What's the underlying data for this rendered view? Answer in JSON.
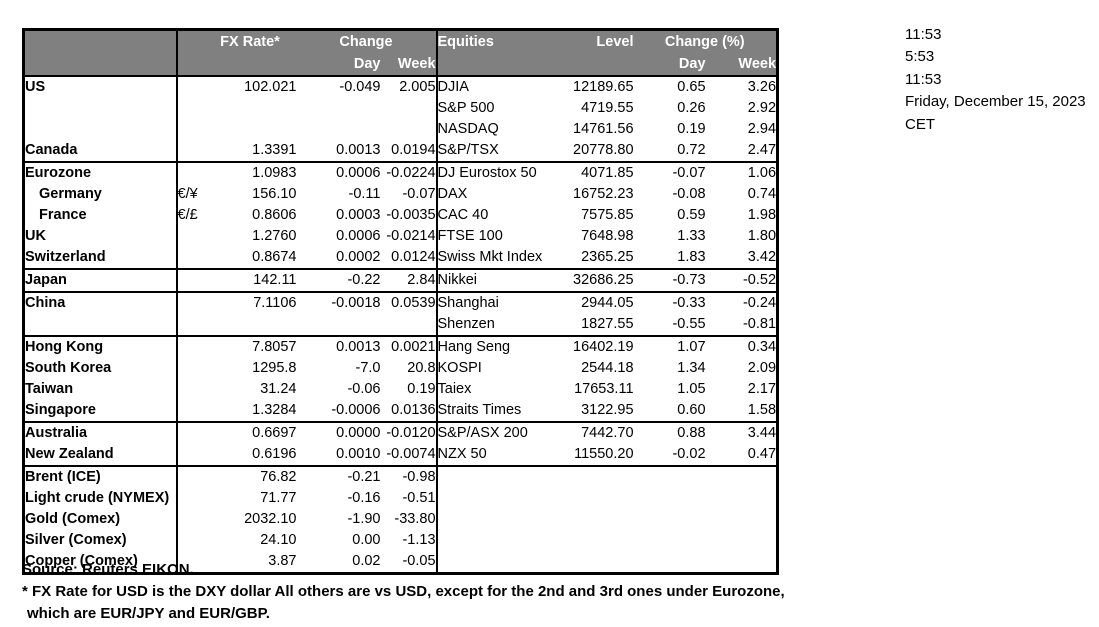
{
  "header": {
    "fx_rate": "FX Rate*",
    "change": "Change",
    "day": "Day",
    "week": "Week",
    "equities": "Equities",
    "level": "Level",
    "change_pct": "Change (%)"
  },
  "sections": [
    {
      "rows": [
        {
          "name": "US",
          "pair": "",
          "fx": "102.021",
          "day": "-0.049",
          "week": "2.005",
          "eq": "DJIA",
          "level": "12189.65",
          "eq_day": "0.65",
          "eq_week": "3.26",
          "indent": false
        },
        {
          "name": "",
          "pair": "",
          "fx": "",
          "day": "",
          "week": "",
          "eq": "S&P 500",
          "level": "4719.55",
          "eq_day": "0.26",
          "eq_week": "2.92",
          "indent": false
        },
        {
          "name": "",
          "pair": "",
          "fx": "",
          "day": "",
          "week": "",
          "eq": "NASDAQ",
          "level": "14761.56",
          "eq_day": "0.19",
          "eq_week": "2.94",
          "indent": false
        },
        {
          "name": "Canada",
          "pair": "",
          "fx": "1.3391",
          "day": "0.0013",
          "week": "0.0194",
          "eq": "S&P/TSX",
          "level": "20778.80",
          "eq_day": "0.72",
          "eq_week": "2.47",
          "indent": false
        }
      ]
    },
    {
      "rows": [
        {
          "name": "Eurozone",
          "pair": "",
          "fx": "1.0983",
          "day": "0.0006",
          "week": "-0.0224",
          "eq": "DJ Eurostox 50",
          "level": "4071.85",
          "eq_day": "-0.07",
          "eq_week": "1.06",
          "indent": false
        },
        {
          "name": "Germany",
          "pair": "€/¥",
          "fx": "156.10",
          "day": "-0.11",
          "week": "-0.07",
          "eq": "DAX",
          "level": "16752.23",
          "eq_day": "-0.08",
          "eq_week": "0.74",
          "indent": true
        },
        {
          "name": "France",
          "pair": "€/£",
          "fx": "0.8606",
          "day": "0.0003",
          "week": "-0.0035",
          "eq": "CAC 40",
          "level": "7575.85",
          "eq_day": "0.59",
          "eq_week": "1.98",
          "indent": true
        },
        {
          "name": "UK",
          "pair": "",
          "fx": "1.2760",
          "day": "0.0006",
          "week": "-0.0214",
          "eq": "FTSE 100",
          "level": "7648.98",
          "eq_day": "1.33",
          "eq_week": "1.80",
          "indent": false
        },
        {
          "name": "Switzerland",
          "pair": "",
          "fx": "0.8674",
          "day": "0.0002",
          "week": "0.0124",
          "eq": "Swiss Mkt Index",
          "level": "2365.25",
          "eq_day": "1.83",
          "eq_week": "3.42",
          "indent": false
        }
      ]
    },
    {
      "rows": [
        {
          "name": "Japan",
          "pair": "",
          "fx": "142.11",
          "day": "-0.22",
          "week": "2.84",
          "eq": "Nikkei",
          "level": "32686.25",
          "eq_day": "-0.73",
          "eq_week": "-0.52",
          "indent": false
        }
      ]
    },
    {
      "rows": [
        {
          "name": "China",
          "pair": "",
          "fx": "7.1106",
          "day": "-0.0018",
          "week": "0.0539",
          "eq": "Shanghai",
          "level": "2944.05",
          "eq_day": "-0.33",
          "eq_week": "-0.24",
          "indent": false
        },
        {
          "name": "",
          "pair": "",
          "fx": "",
          "day": "",
          "week": "",
          "eq": "Shenzen",
          "level": "1827.55",
          "eq_day": "-0.55",
          "eq_week": "-0.81",
          "indent": false
        }
      ]
    },
    {
      "rows": [
        {
          "name": "Hong Kong",
          "pair": "",
          "fx": "7.8057",
          "day": "0.0013",
          "week": "0.0021",
          "eq": "Hang Seng",
          "level": "16402.19",
          "eq_day": "1.07",
          "eq_week": "0.34",
          "indent": false
        },
        {
          "name": "South Korea",
          "pair": "",
          "fx": "1295.8",
          "day": "-7.0",
          "week": "20.8",
          "eq": "KOSPI",
          "level": "2544.18",
          "eq_day": "1.34",
          "eq_week": "2.09",
          "indent": false
        },
        {
          "name": "Taiwan",
          "pair": "",
          "fx": "31.24",
          "day": "-0.06",
          "week": "0.19",
          "eq": "Taiex",
          "level": "17653.11",
          "eq_day": "1.05",
          "eq_week": "2.17",
          "indent": false
        },
        {
          "name": "Singapore",
          "pair": "",
          "fx": "1.3284",
          "day": "-0.0006",
          "week": "0.0136",
          "eq": "Straits Times",
          "level": "3122.95",
          "eq_day": "0.60",
          "eq_week": "1.58",
          "indent": false
        }
      ]
    },
    {
      "rows": [
        {
          "name": "Australia",
          "pair": "",
          "fx": "0.6697",
          "day": "0.0000",
          "week": "-0.0120",
          "eq": "S&P/ASX  200",
          "level": "7442.70",
          "eq_day": "0.88",
          "eq_week": "3.44",
          "indent": false
        },
        {
          "name": "New Zealand",
          "pair": "",
          "fx": "0.6196",
          "day": "0.0010",
          "week": "-0.0074",
          "eq": "NZX 50",
          "level": "11550.20",
          "eq_day": "-0.02",
          "eq_week": "0.47",
          "indent": false
        }
      ]
    },
    {
      "rows": [
        {
          "name": "Brent (ICE)",
          "pair": "",
          "fx": "76.82",
          "day": "-0.21",
          "week": "-0.98",
          "eq": "",
          "level": "",
          "eq_day": "",
          "eq_week": "",
          "indent": false
        },
        {
          "name": "Light crude (NYMEX)",
          "pair": "",
          "fx": "71.77",
          "day": "-0.16",
          "week": "-0.51",
          "eq": "",
          "level": "",
          "eq_day": "",
          "eq_week": "",
          "indent": false
        },
        {
          "name": "Gold (Comex)",
          "pair": "",
          "fx": "2032.10",
          "day": "-1.90",
          "week": "-33.80",
          "eq": "",
          "level": "",
          "eq_day": "",
          "eq_week": "",
          "indent": false
        },
        {
          "name": "Silver (Comex)",
          "pair": "",
          "fx": "24.10",
          "day": "0.00",
          "week": "-1.13",
          "eq": "",
          "level": "",
          "eq_day": "",
          "eq_week": "",
          "indent": false
        },
        {
          "name": "Copper (Comex)",
          "pair": "",
          "fx": "3.87",
          "day": "0.02",
          "week": "-0.05",
          "eq": "",
          "level": "",
          "eq_day": "",
          "eq_week": "",
          "indent": false
        }
      ]
    }
  ],
  "info": {
    "lines": [
      "11:53",
      "5:53",
      "11:53",
      "Friday, December 15, 2023",
      "CET"
    ]
  },
  "footer": {
    "source": "Source:  Reuters EIKON.",
    "note1": "* FX Rate for USD is the DXY dollar  All others are vs USD, except for the 2nd and 3rd ones under Eurozone,",
    "note2": "which are EUR/JPY and EUR/GBP."
  },
  "colors": {
    "header_bg": "#808080",
    "header_text": "#ffffff",
    "border": "#000000"
  }
}
